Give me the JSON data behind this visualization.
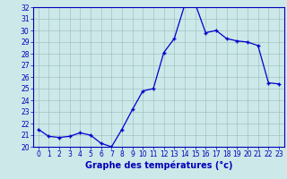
{
  "hours": [
    0,
    1,
    2,
    3,
    4,
    5,
    6,
    7,
    8,
    9,
    10,
    11,
    12,
    13,
    14,
    15,
    16,
    17,
    18,
    19,
    20,
    21,
    22,
    23
  ],
  "temps": [
    21.5,
    20.9,
    20.8,
    20.9,
    21.2,
    21.0,
    20.3,
    20.0,
    21.5,
    23.2,
    24.8,
    25.0,
    28.1,
    29.3,
    32.2,
    32.3,
    29.8,
    30.0,
    29.3,
    29.1,
    29.0,
    28.7,
    25.5,
    25.4
  ],
  "line_color": "#0000cc",
  "marker": "+",
  "bg_color": "#cce8e8",
  "grid_color": "#99bbbb",
  "axis_color": "#0000bb",
  "xlabel": "Graphe des températures (°c)",
  "ylim": [
    20,
    32
  ],
  "xlim_min": -0.5,
  "xlim_max": 23.5,
  "yticks": [
    20,
    21,
    22,
    23,
    24,
    25,
    26,
    27,
    28,
    29,
    30,
    31,
    32
  ],
  "xticks": [
    0,
    1,
    2,
    3,
    4,
    5,
    6,
    7,
    8,
    9,
    10,
    11,
    12,
    13,
    14,
    15,
    16,
    17,
    18,
    19,
    20,
    21,
    22,
    23
  ],
  "tick_fontsize": 5.5,
  "label_fontsize": 7.0
}
